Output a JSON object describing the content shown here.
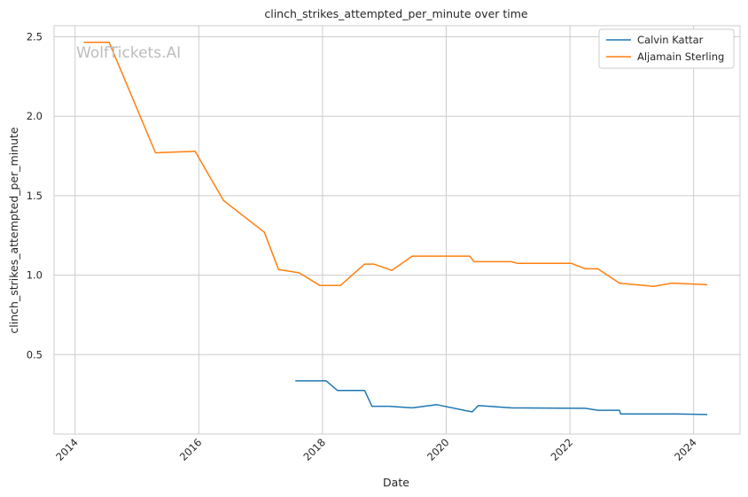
{
  "chart_data": {
    "type": "line",
    "title": "clinch_strikes_attempted_per_minute over time",
    "xlabel": "Date",
    "ylabel": "clinch_strikes_attempted_per_minute",
    "watermark": "WolfTickets.AI",
    "xlim": [
      2013.66,
      2024.75
    ],
    "ylim": [
      0.0,
      2.57
    ],
    "xticks": [
      2014,
      2016,
      2018,
      2020,
      2022,
      2024
    ],
    "yticks": [
      0.5,
      1.0,
      1.5,
      2.0,
      2.5
    ],
    "ytick_labels": [
      "0.5",
      "1.0",
      "1.5",
      "2.0",
      "2.5"
    ],
    "grid": true,
    "legend_position": "top-right",
    "series": [
      {
        "name": "Calvin Kattar",
        "color": "#1f77b4",
        "x": [
          2017.56,
          2018.06,
          2018.24,
          2018.68,
          2018.8,
          2019.08,
          2019.45,
          2019.85,
          2020.35,
          2020.42,
          2020.52,
          2021.05,
          2022.25,
          2022.45,
          2022.8,
          2022.82,
          2023.3,
          2023.7,
          2024.22
        ],
        "y": [
          0.335,
          0.335,
          0.275,
          0.275,
          0.175,
          0.175,
          0.165,
          0.185,
          0.145,
          0.14,
          0.18,
          0.165,
          0.162,
          0.15,
          0.15,
          0.127,
          0.127,
          0.127,
          0.123
        ]
      },
      {
        "name": "Aljamain Sterling",
        "color": "#ff7f0e",
        "x": [
          2014.14,
          2014.55,
          2015.3,
          2015.94,
          2016.4,
          2017.06,
          2017.29,
          2017.62,
          2017.96,
          2018.29,
          2018.68,
          2018.83,
          2019.12,
          2019.45,
          2020.1,
          2020.38,
          2020.45,
          2021.05,
          2021.15,
          2022.02,
          2022.25,
          2022.45,
          2022.8,
          2023.35,
          2023.65,
          2024.22
        ],
        "y": [
          2.465,
          2.465,
          1.77,
          1.78,
          1.47,
          1.27,
          1.035,
          1.015,
          0.935,
          0.935,
          1.07,
          1.07,
          1.03,
          1.12,
          1.12,
          1.12,
          1.085,
          1.085,
          1.075,
          1.075,
          1.04,
          1.04,
          0.95,
          0.93,
          0.95,
          0.94
        ]
      }
    ]
  }
}
